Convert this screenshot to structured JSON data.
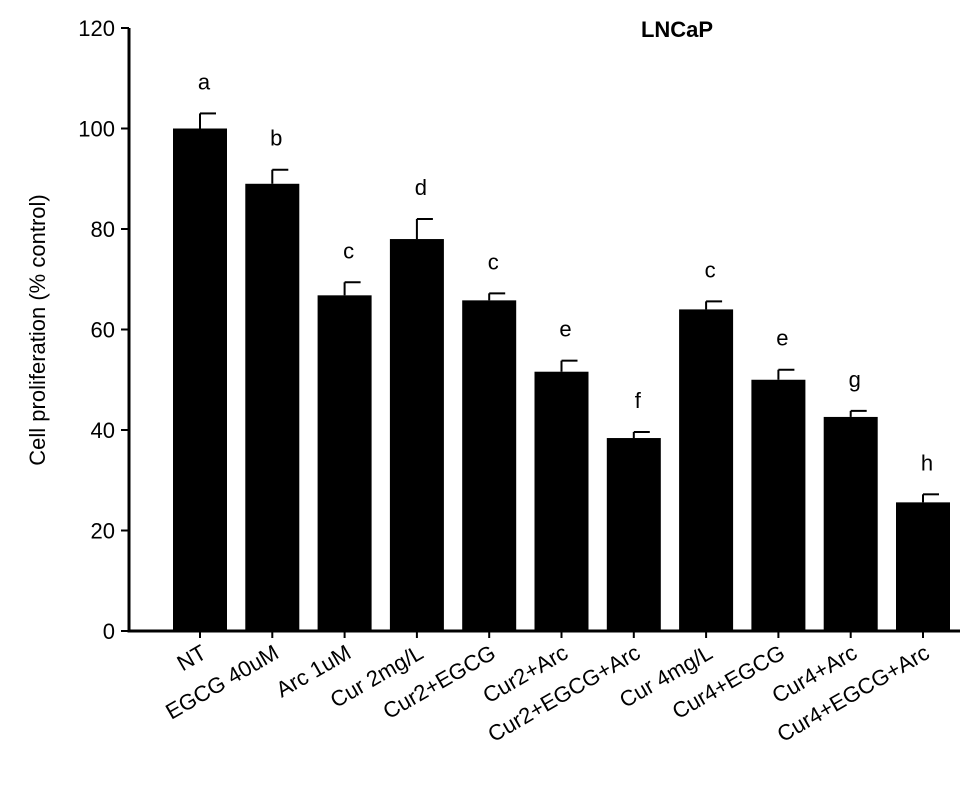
{
  "chart_data": {
    "type": "bar",
    "title": "LNCaP",
    "xlabel": "",
    "ylabel": "Cell proliferation (% control)",
    "ylim": [
      0,
      120
    ],
    "yticks": [
      0,
      20,
      40,
      60,
      80,
      100,
      120
    ],
    "grid": false,
    "legend": "none",
    "bar_color": "#000000",
    "categories": [
      "NT",
      "EGCG 40uM",
      "Arc 1uM",
      "Cur 2mg/L",
      "Cur2+EGCG",
      "Cur2+Arc",
      "Cur2+EGCG+Arc",
      "Cur 4mg/L",
      "Cur4+EGCG",
      "Cur4+Arc",
      "Cur4+EGCG+Arc"
    ],
    "values": [
      100,
      89,
      66.8,
      78,
      65.8,
      51.6,
      38.4,
      64,
      50,
      42.6,
      25.6
    ],
    "errors": [
      3.0,
      2.8,
      2.6,
      4.0,
      1.4,
      2.2,
      1.2,
      1.6,
      2.0,
      1.2,
      1.6
    ],
    "annotations": [
      "a",
      "b",
      "c",
      "d",
      "c",
      "e",
      "f",
      "c",
      "e",
      "g",
      "h"
    ]
  }
}
